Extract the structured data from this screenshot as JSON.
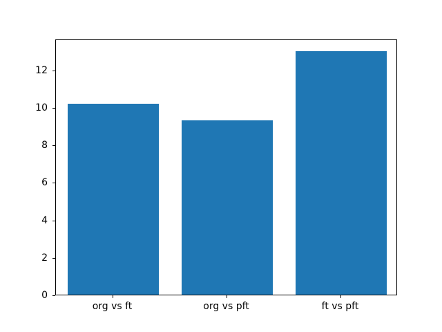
{
  "chart_data": {
    "type": "bar",
    "title": "",
    "xlabel": "",
    "ylabel": "",
    "categories": [
      "org vs ft",
      "org vs pft",
      "ft vs pft"
    ],
    "values": [
      10.2,
      9.3,
      13.0
    ],
    "yticks": [
      0,
      2,
      4,
      6,
      8,
      10,
      12
    ],
    "ylim": [
      0,
      13.65
    ],
    "bar_width_fraction": 0.8,
    "grid": false,
    "legend": null,
    "colors": {
      "bar": "#1f77b4",
      "axis": "#000000",
      "background": "#ffffff",
      "text": "#000000"
    }
  }
}
